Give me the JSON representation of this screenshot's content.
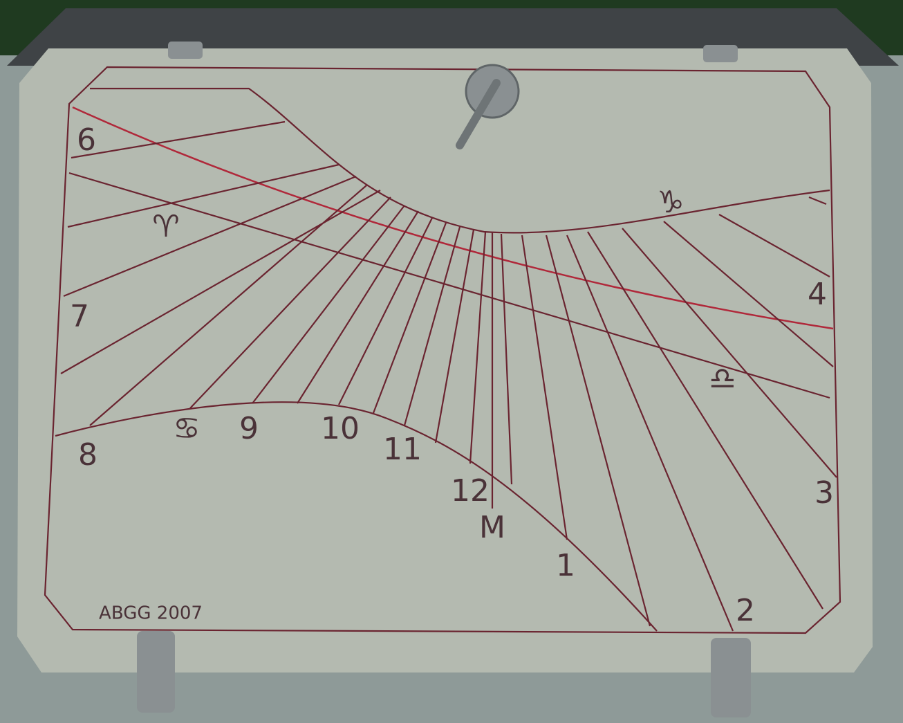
{
  "hour_labels": [
    "6",
    "7",
    "8",
    "9",
    "10",
    "11",
    "12",
    "M",
    "1",
    "2",
    "3",
    "4"
  ],
  "signs": [
    "♈",
    "♋",
    "♑",
    "♎"
  ],
  "inscription": "ABGG 2007"
}
